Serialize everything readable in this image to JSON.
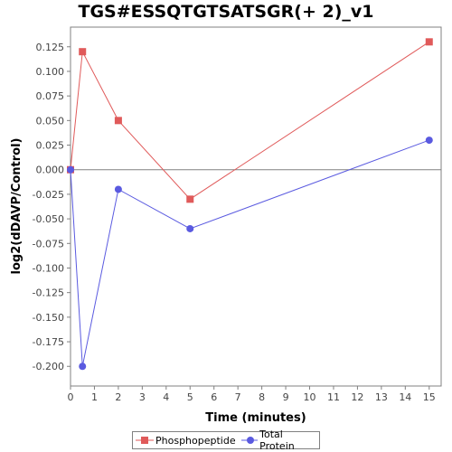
{
  "chart_data": {
    "type": "line",
    "title": "TGS#ESSQTGTSATSGR(+ 2)_v1",
    "xlabel": "Time (minutes)",
    "ylabel": "log2(dDAVP/Control)",
    "xlim": [
      0,
      15.5
    ],
    "ylim": [
      -0.22,
      0.145
    ],
    "x_ticks": [
      0,
      1,
      2,
      3,
      4,
      5,
      6,
      7,
      8,
      9,
      10,
      11,
      12,
      13,
      14,
      15
    ],
    "y_ticks": [
      -0.2,
      -0.175,
      -0.15,
      -0.125,
      -0.1,
      -0.075,
      -0.05,
      -0.025,
      0.0,
      0.025,
      0.05,
      0.075,
      0.1,
      0.125
    ],
    "y_tick_labels": [
      "-0.200",
      "-0.175",
      "-0.150",
      "-0.125",
      "-0.100",
      "-0.075",
      "-0.050",
      "-0.025",
      "0.000",
      "0.025",
      "0.050",
      "0.075",
      "0.100",
      "0.125"
    ],
    "zero_line": true,
    "grid": false,
    "legend_position": "bottom",
    "series": [
      {
        "name": "Phosphopeptide",
        "color": "#e05a5a",
        "marker": "square",
        "x": [
          0,
          0.5,
          2,
          5,
          15
        ],
        "y": [
          0.0,
          0.12,
          0.05,
          -0.03,
          0.13
        ]
      },
      {
        "name": "Total Protein",
        "color": "#5a5ae0",
        "marker": "circle",
        "x": [
          0,
          0.5,
          2,
          5,
          15
        ],
        "y": [
          0.0,
          -0.2,
          -0.02,
          -0.06,
          0.03
        ]
      }
    ]
  }
}
